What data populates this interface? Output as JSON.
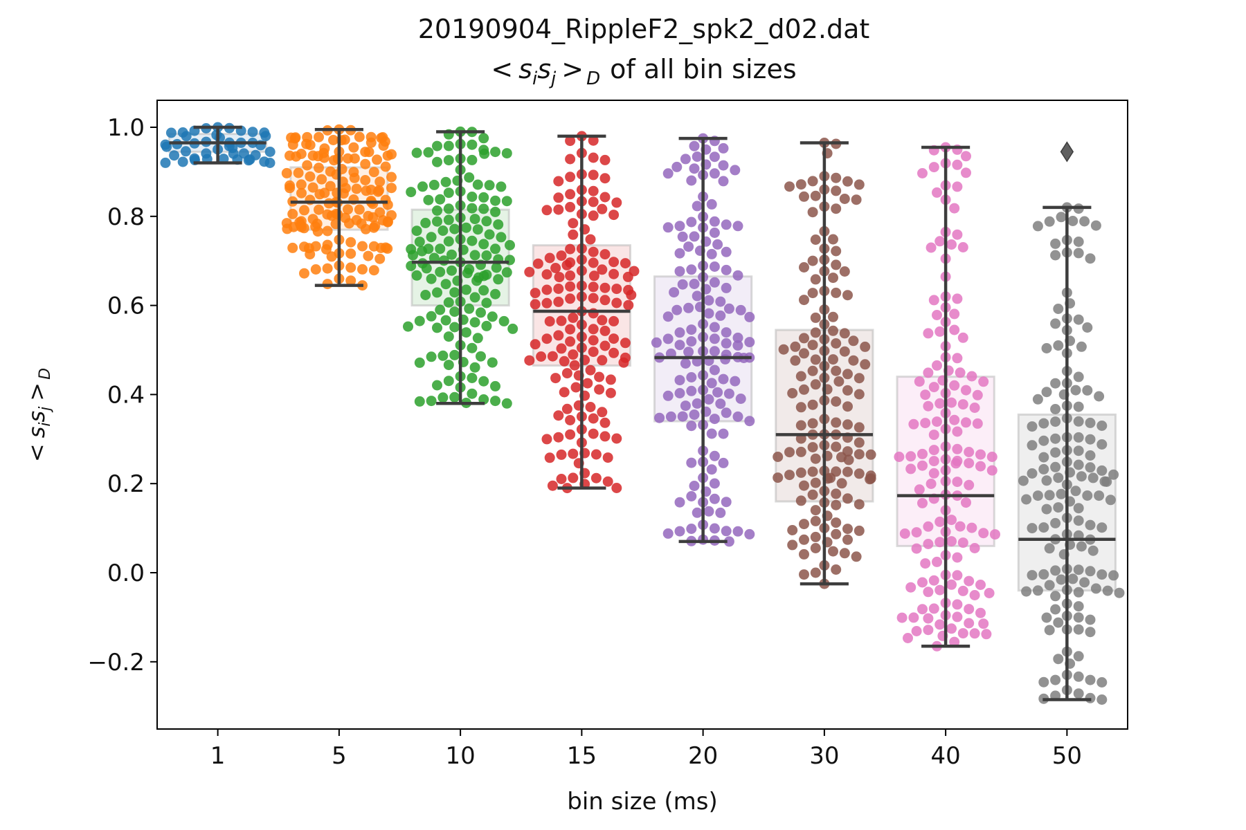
{
  "chart_data": {
    "type": "box+swarm",
    "title_line1": "20190904_RippleF2_spk2_d02.dat",
    "title_line2": "of all bin sizes",
    "title_math": {
      "lt": "<",
      "s1": "s",
      "sub1": "i",
      "s2": "s",
      "sub2": "j",
      "gt": ">",
      "subD": "D"
    },
    "xlabel": "bin size (ms)",
    "ylabel_math": {
      "lt": "<",
      "s1": "s",
      "sub1": "i",
      "s2": "s",
      "sub2": "j",
      "gt": ">",
      "subD": "D"
    },
    "ylim": [
      -0.3,
      1.05
    ],
    "yticks": [
      -0.2,
      0.0,
      0.2,
      0.4,
      0.6,
      0.8,
      1.0
    ],
    "ytick_labels": [
      "−0.2",
      "0.0",
      "0.2",
      "0.4",
      "0.6",
      "0.8",
      "1.0"
    ],
    "categories": [
      "1",
      "5",
      "10",
      "15",
      "20",
      "30",
      "40",
      "50"
    ],
    "colors": [
      "#1f77b4",
      "#ff7f0e",
      "#2ca02c",
      "#d62728",
      "#9467bd",
      "#8c564b",
      "#e377c2",
      "#7f7f7f"
    ],
    "grid": false,
    "legend": "none",
    "boxes": [
      {
        "category": "1",
        "whisker_low": 0.92,
        "q1": 0.945,
        "median": 0.965,
        "q3": 0.985,
        "whisker_high": 1.0
      },
      {
        "category": "5",
        "whisker_low": 0.645,
        "q1": 0.77,
        "median": 0.832,
        "q3": 0.91,
        "whisker_high": 0.995
      },
      {
        "category": "10",
        "whisker_low": 0.38,
        "q1": 0.6,
        "median": 0.697,
        "q3": 0.815,
        "whisker_high": 0.99
      },
      {
        "category": "15",
        "whisker_low": 0.19,
        "q1": 0.465,
        "median": 0.587,
        "q3": 0.735,
        "whisker_high": 0.98
      },
      {
        "category": "20",
        "whisker_low": 0.07,
        "q1": 0.34,
        "median": 0.483,
        "q3": 0.665,
        "whisker_high": 0.975
      },
      {
        "category": "30",
        "whisker_low": -0.025,
        "q1": 0.16,
        "median": 0.31,
        "q3": 0.545,
        "whisker_high": 0.965
      },
      {
        "category": "40",
        "whisker_low": -0.165,
        "q1": 0.06,
        "median": 0.173,
        "q3": 0.44,
        "whisker_high": 0.955
      },
      {
        "category": "50",
        "whisker_low": -0.285,
        "q1": -0.04,
        "median": 0.075,
        "q3": 0.355,
        "whisker_high": 0.82
      }
    ],
    "outliers": [
      {
        "category": "50",
        "value": 0.945
      }
    ]
  }
}
